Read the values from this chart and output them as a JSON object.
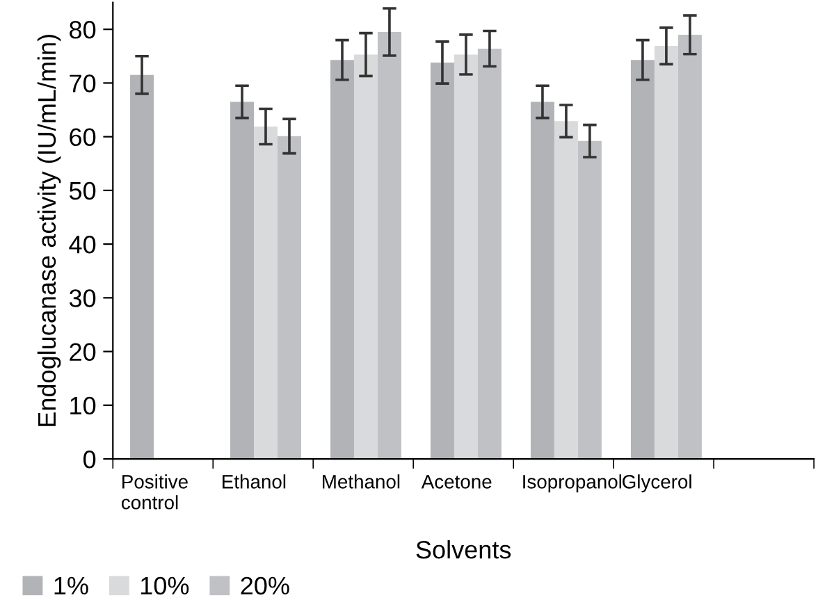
{
  "chart_data": {
    "type": "bar",
    "xlabel": "Solvents",
    "ylabel": "Endoglucanase activity (IU/mL/min)",
    "categories": [
      "Positive\ncontrol",
      "Ethanol",
      "Methanol",
      "Acetone",
      "Isopropanol",
      "Glycerol",
      null
    ],
    "series": [
      {
        "name": "1%",
        "color": "#b2b3b7",
        "values": [
          71.5,
          66.5,
          74.3,
          73.8,
          66.5,
          74.3,
          null
        ],
        "errors": [
          3.5,
          3,
          3.7,
          3.9,
          3,
          3.7,
          null
        ]
      },
      {
        "name": "10%",
        "color": "#d9dadc",
        "values": [
          null,
          61.9,
          75.3,
          75.3,
          62.9,
          76.9,
          null
        ],
        "errors": [
          null,
          3.3,
          4,
          3.7,
          3,
          3.4,
          null
        ]
      },
      {
        "name": "20%",
        "color": "#c0c1c5",
        "values": [
          null,
          60.1,
          79.5,
          76.4,
          59.2,
          79,
          null
        ],
        "errors": [
          null,
          3.2,
          4.4,
          3.3,
          3,
          3.6,
          null
        ]
      }
    ],
    "ylim": [
      0,
      85
    ],
    "yticks": [
      0,
      10,
      20,
      30,
      40,
      50,
      60,
      70,
      80
    ],
    "grid": false,
    "legend": "bottom left"
  }
}
